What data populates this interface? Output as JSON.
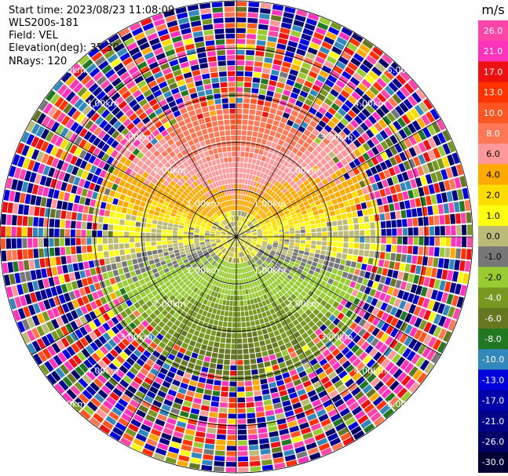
{
  "header": {
    "start_time": "Start time: 2023/08/23 11:08:09",
    "instrument": "WLS200s-181",
    "field": "Field: VEL",
    "elevation": "Elevation(deg): 35.30",
    "nrays": "NRays: 120"
  },
  "chart_data": {
    "type": "heatmap",
    "subtype": "polar-ppi",
    "field": "VEL",
    "units": "m/s",
    "n_rays": 120,
    "range_rings_km": [
      1,
      2,
      3,
      4,
      5
    ],
    "range_ring_labels": [
      "1.00km",
      "2.00km",
      "3.00km",
      "4.00km",
      "5.00km"
    ],
    "max_range_km": 5.0,
    "colorbar": {
      "title": "m/s",
      "tick_labels": [
        "26.0",
        "21.0",
        "17.0",
        "13.0",
        "10.0",
        "8.0",
        "6.0",
        "4.0",
        "2.0",
        "1.0",
        "0.0",
        "-1.0",
        "-2.0",
        "-4.0",
        "-6.0",
        "-8.0",
        "-10.0",
        "-13.0",
        "-17.0",
        "-21.0",
        "-26.0",
        "-30.0"
      ],
      "colors": [
        "#ff44aa",
        "#ff33bb",
        "#ee1111",
        "#ff3300",
        "#ff5522",
        "#ff7755",
        "#ff9999",
        "#ffaa00",
        "#ffdd00",
        "#ffff11",
        "#bbbb77",
        "#777777",
        "#99cc33",
        "#779922",
        "#667722",
        "#227722",
        "#3388bb",
        "#0000dd",
        "#0000aa",
        "#000088",
        "#000066",
        "#000033"
      ]
    },
    "velocity_pattern": {
      "near_zero_radius_km": 0.5,
      "north_sector_velocity_ms": 7.0,
      "south_sector_velocity_ms": -6.0,
      "valid_range_limit_km": 3.0
    }
  }
}
